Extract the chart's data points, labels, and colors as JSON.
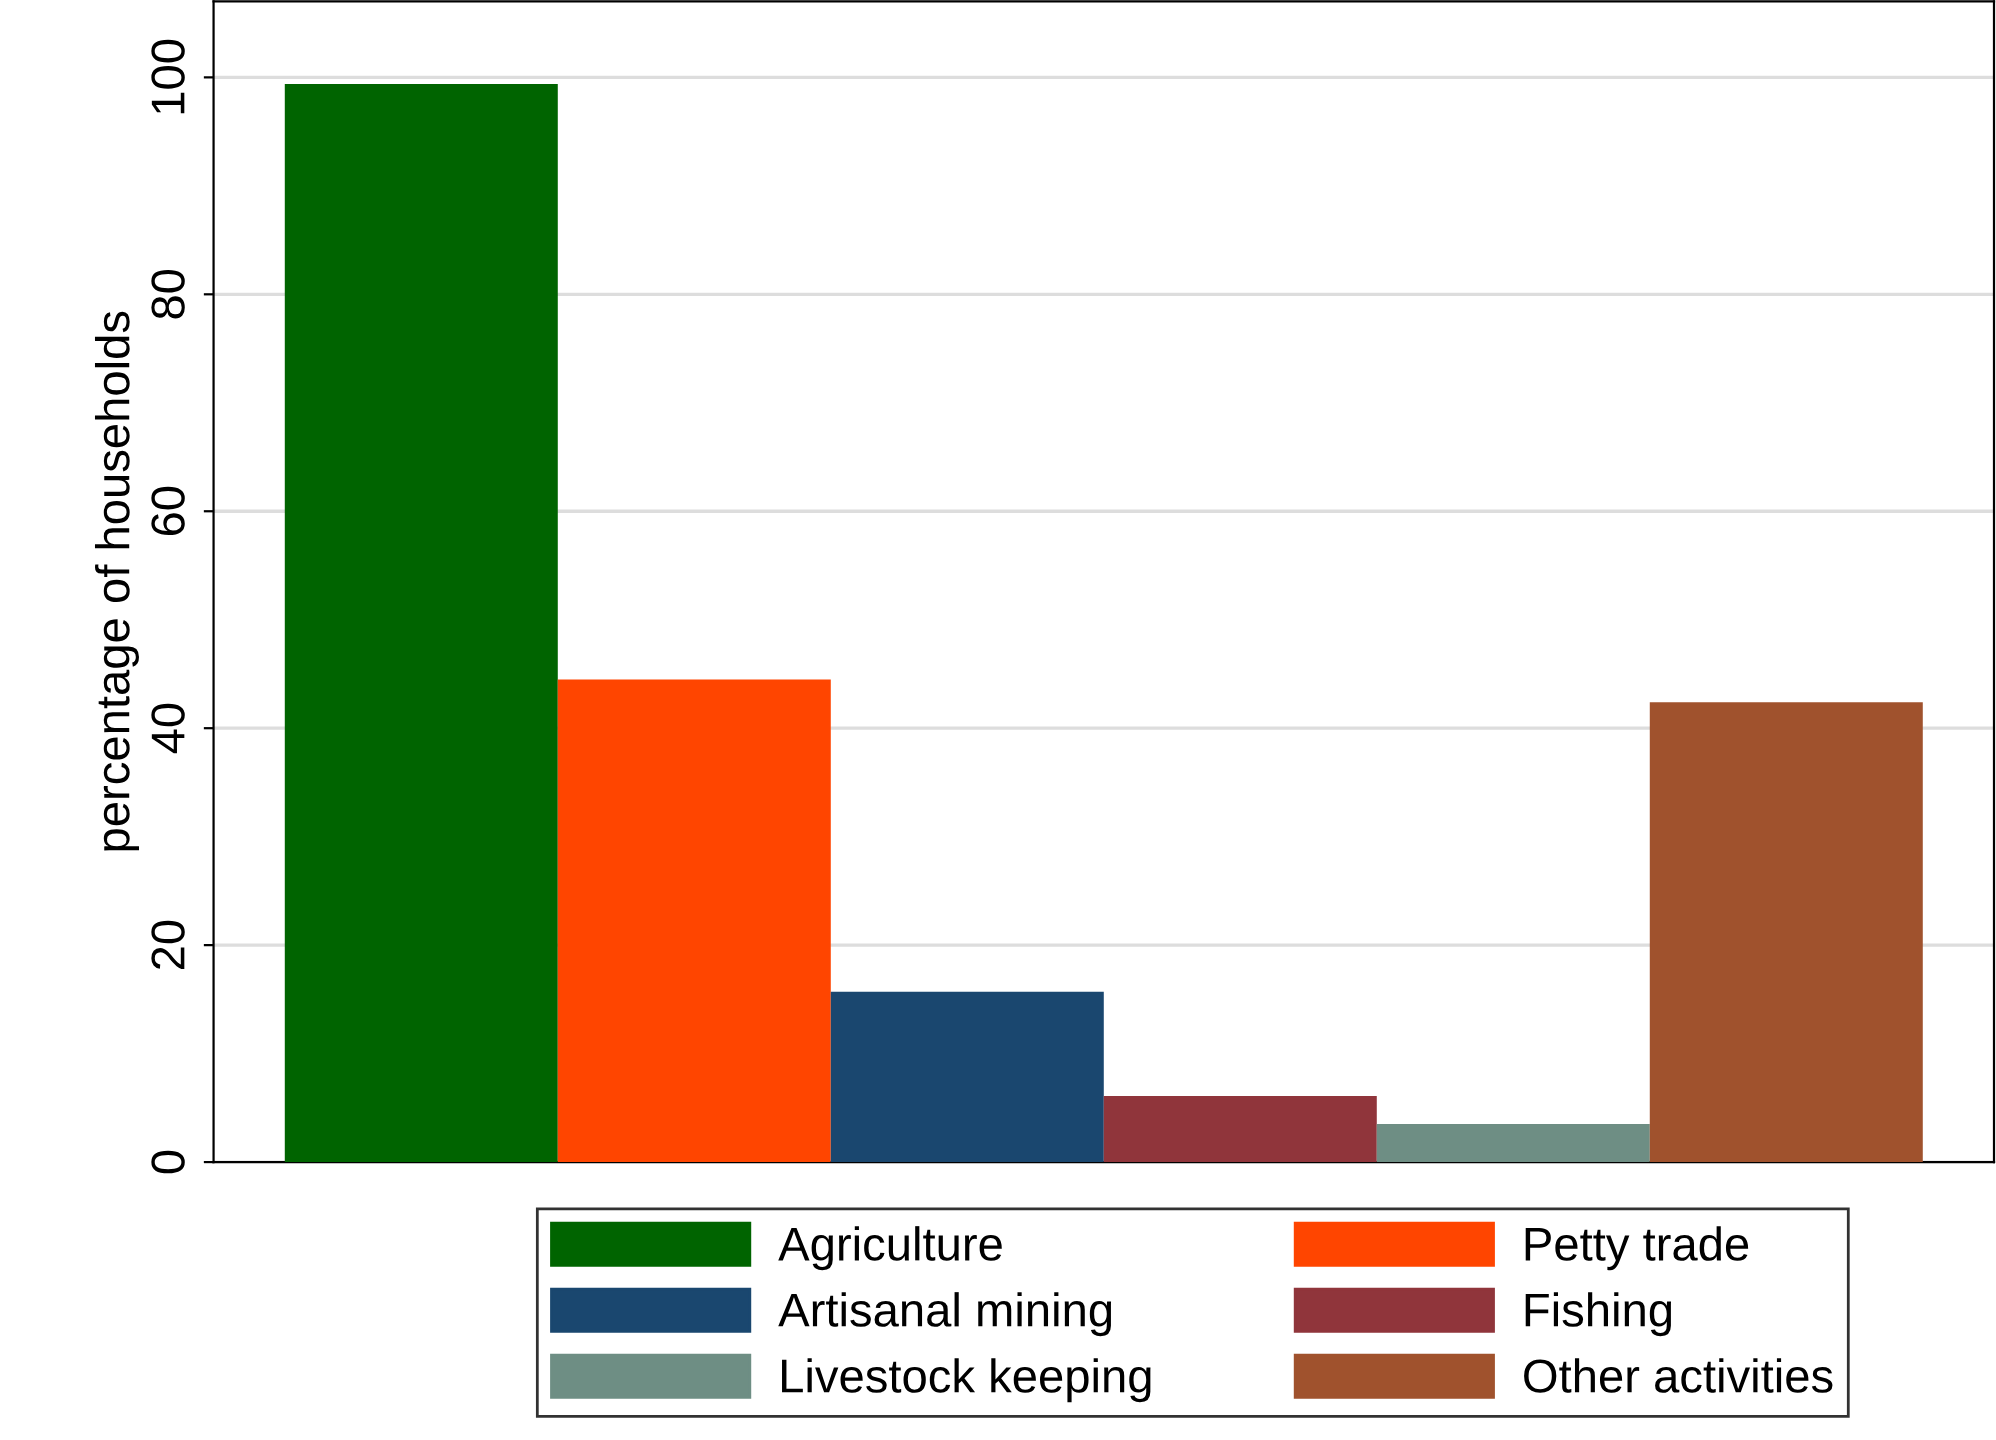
{
  "chart_data": {
    "type": "bar",
    "ylabel": "percentage of households",
    "categories": [
      null
    ],
    "series": [
      {
        "name": "Agriculture",
        "color": "#006400",
        "values": [
          99.4
        ]
      },
      {
        "name": "Petty trade",
        "color": "#ff4500",
        "values": [
          44.5
        ]
      },
      {
        "name": "Artisanal mining",
        "color": "#1a476f",
        "values": [
          15.7
        ]
      },
      {
        "name": "Fishing",
        "color": "#90353b",
        "values": [
          6.1
        ]
      },
      {
        "name": "Livestock keeping",
        "color": "#6e8e84",
        "values": [
          3.5
        ]
      },
      {
        "name": "Other activities",
        "color": "#a0522d",
        "values": [
          42.4
        ]
      }
    ],
    "ylim": [
      0,
      107
    ],
    "yticks": [
      0,
      20,
      40,
      60,
      80,
      100
    ],
    "grid": "y",
    "legend": "bottom"
  }
}
